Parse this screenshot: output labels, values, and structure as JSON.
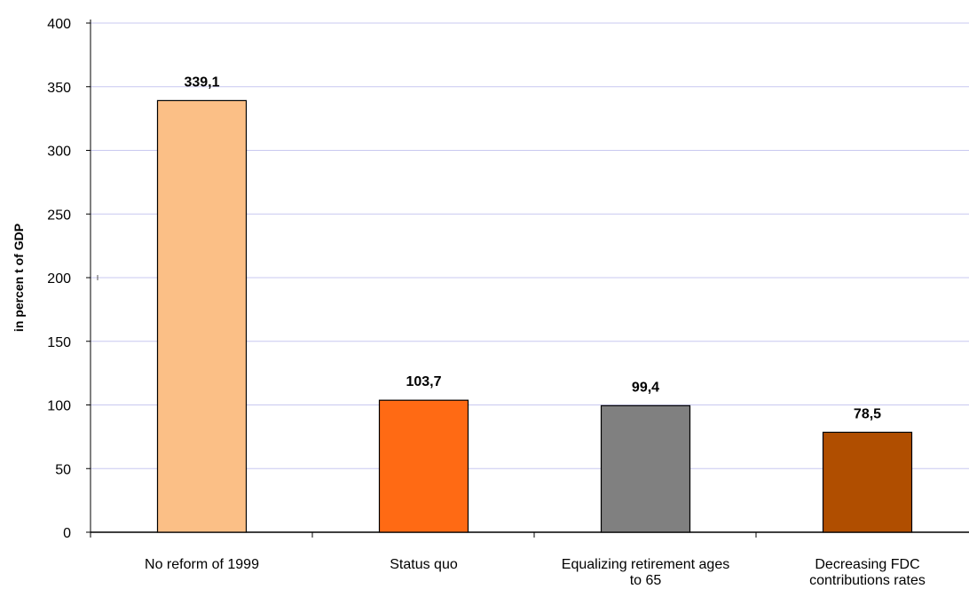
{
  "chart_data": {
    "type": "bar",
    "title": "",
    "xlabel": "",
    "ylabel": "in percen t of GDP",
    "ylim": [
      0,
      400
    ],
    "yticks": [
      0,
      50,
      100,
      150,
      200,
      250,
      300,
      350,
      400
    ],
    "grid": true,
    "legend": "none",
    "categories": [
      [
        "No reform of 1999"
      ],
      [
        "Status quo"
      ],
      [
        "Equalizing retirement ages",
        "to 65"
      ],
      [
        "Decreasing FDC",
        "contributions rates"
      ]
    ],
    "values": [
      339.1,
      103.7,
      99.4,
      78.5
    ],
    "data_labels": [
      "339,1",
      "103,7",
      "99,4",
      "78,5"
    ],
    "colors": [
      "#FBBF86",
      "#FF6A14",
      "#808080",
      "#B04E00"
    ],
    "grid_color": "#C8C8F0"
  }
}
